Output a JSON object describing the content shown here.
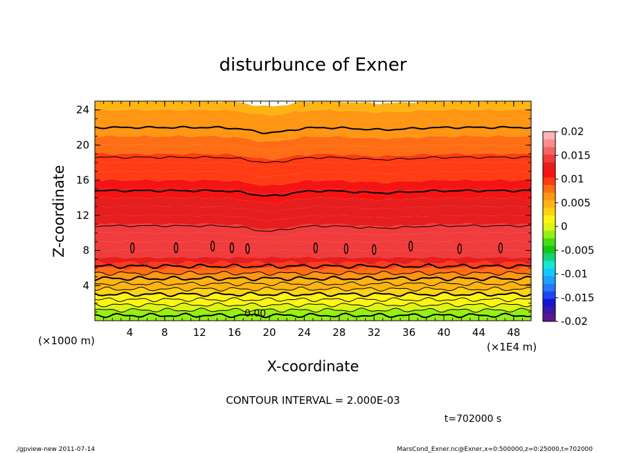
{
  "chart_data": {
    "type": "heatmap",
    "title": "disturbunce of Exner",
    "xlabel": "X-coordinate",
    "ylabel": "Z-coordinate",
    "x_unit": "(×1000 m)",
    "x_scale_note": "(×1E4 m)",
    "xlim": [
      0,
      50
    ],
    "ylim": [
      0,
      25
    ],
    "x_ticks": [
      4,
      8,
      12,
      16,
      20,
      24,
      28,
      32,
      36,
      40,
      44,
      48
    ],
    "y_ticks": [
      4,
      8,
      12,
      16,
      20,
      24
    ],
    "contour_interval_text": "CONTOUR INTERVAL = 2.000E-03",
    "time_text": "t=702000 s",
    "contour_label": "0.00",
    "colorbar": {
      "min": -0.02,
      "max": 0.02,
      "tick_labels": [
        "0.02",
        "0.015",
        "0.01",
        "0.005",
        "0",
        "-0.005",
        "-0.01",
        "-0.015",
        "-0.02"
      ],
      "colors": [
        "#5a1a8c",
        "#3a1aa8",
        "#1414d2",
        "#1e46f0",
        "#2878ff",
        "#1ea0ff",
        "#12c8ff",
        "#14e6d2",
        "#14d278",
        "#14c814",
        "#46dc14",
        "#96f014",
        "#dcf514",
        "#fff514",
        "#ffd214",
        "#ffb414",
        "#ff9614",
        "#ff6e14",
        "#ff3c14",
        "#f51414",
        "#e61e1e",
        "#f03c3c",
        "#f56464",
        "#fa8c8c",
        "#ffb4b4"
      ]
    },
    "value_bands": [
      {
        "z": 0.0,
        "v": -0.002
      },
      {
        "z": 0.6,
        "v": -0.001
      },
      {
        "z": 1.2,
        "v": 0.0
      },
      {
        "z": 1.8,
        "v": 0.001
      },
      {
        "z": 2.4,
        "v": 0.002
      },
      {
        "z": 3.0,
        "v": 0.003
      },
      {
        "z": 3.6,
        "v": 0.004
      },
      {
        "z": 4.2,
        "v": 0.005
      },
      {
        "z": 4.8,
        "v": 0.006
      },
      {
        "z": 5.4,
        "v": 0.008
      },
      {
        "z": 6.0,
        "v": 0.01
      },
      {
        "z": 6.6,
        "v": 0.0125
      },
      {
        "z": 7.2,
        "v": 0.0138
      },
      {
        "z": 8.0,
        "v": 0.0142
      },
      {
        "z": 9.0,
        "v": 0.0142
      },
      {
        "z": 10.0,
        "v": 0.014
      },
      {
        "z": 11.0,
        "v": 0.0135
      },
      {
        "z": 12.0,
        "v": 0.0128
      },
      {
        "z": 13.0,
        "v": 0.0122
      },
      {
        "z": 14.0,
        "v": 0.0116
      },
      {
        "z": 15.0,
        "v": 0.011
      },
      {
        "z": 16.0,
        "v": 0.0103
      },
      {
        "z": 17.0,
        "v": 0.0096
      },
      {
        "z": 18.0,
        "v": 0.009
      },
      {
        "z": 19.0,
        "v": 0.0083
      },
      {
        "z": 20.0,
        "v": 0.0077
      },
      {
        "z": 21.0,
        "v": 0.007
      },
      {
        "z": 22.0,
        "v": 0.0063
      },
      {
        "z": 23.0,
        "v": 0.0056
      },
      {
        "z": 24.0,
        "v": 0.0049
      },
      {
        "z": 25.0,
        "v": 0.0042
      }
    ],
    "contour_levels_z": [
      {
        "z": 0.6,
        "bold": true
      },
      {
        "z": 1.2,
        "bold": false
      },
      {
        "z": 1.8,
        "bold": false
      },
      {
        "z": 2.4,
        "bold": false
      },
      {
        "z": 3.0,
        "bold": true
      },
      {
        "z": 3.6,
        "bold": false
      },
      {
        "z": 4.2,
        "bold": false
      },
      {
        "z": 4.8,
        "bold": true
      },
      {
        "z": 5.4,
        "bold": false
      },
      {
        "z": 6.2,
        "bold": true
      },
      {
        "z": 10.8,
        "bold": false
      },
      {
        "z": 14.8,
        "bold": true
      },
      {
        "z": 18.6,
        "bold": false
      },
      {
        "z": 22.0,
        "bold": true
      }
    ],
    "closed_contours": [
      {
        "x": 4.3,
        "z": 8.3
      },
      {
        "x": 9.3,
        "z": 8.3
      },
      {
        "x": 13.5,
        "z": 8.5
      },
      {
        "x": 15.7,
        "z": 8.3
      },
      {
        "x": 17.5,
        "z": 8.2
      },
      {
        "x": 25.3,
        "z": 8.3
      },
      {
        "x": 28.8,
        "z": 8.2
      },
      {
        "x": 32.0,
        "z": 8.1
      },
      {
        "x": 36.2,
        "z": 8.5
      },
      {
        "x": 41.8,
        "z": 8.2
      },
      {
        "x": 46.5,
        "z": 8.3
      }
    ]
  },
  "footer": {
    "left": "./gpview-new   2011-07-14",
    "right": "MarsCond_Exner.nc@Exner,x=0:500000,z=0:25000,t=702000"
  }
}
